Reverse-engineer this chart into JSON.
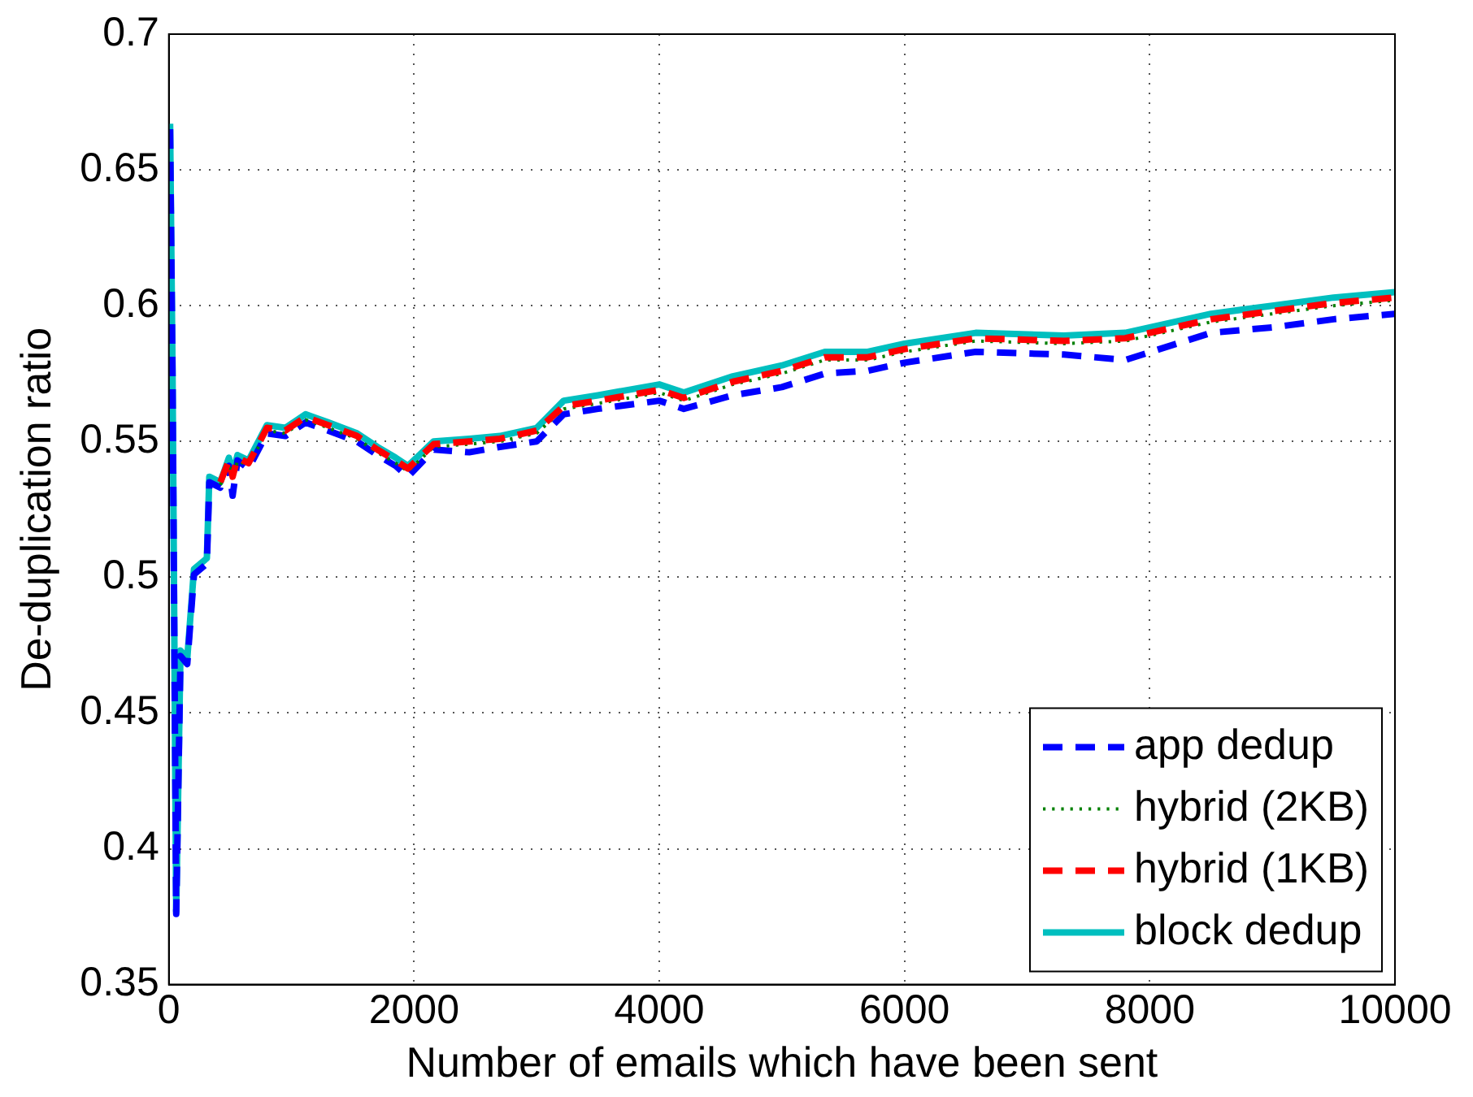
{
  "chart_data": {
    "type": "line",
    "xlabel": "Number of emails which have been sent",
    "ylabel": "De-duplication ratio",
    "x": [
      10,
      30,
      60,
      95,
      150,
      205,
      310,
      330,
      420,
      490,
      520,
      560,
      650,
      800,
      950,
      1115,
      1300,
      1535,
      1700,
      1850,
      1950,
      2160,
      2450,
      2700,
      3000,
      3220,
      3500,
      4000,
      4200,
      4600,
      5000,
      5350,
      5700,
      6000,
      6580,
      7300,
      7800,
      8500,
      9000,
      9500,
      10000
    ],
    "series": [
      {
        "name": "app dedup",
        "color": "#0000ff",
        "line_style": "dashed",
        "values": [
          0.665,
          0.574,
          0.376,
          0.471,
          0.468,
          0.501,
          0.505,
          0.535,
          0.533,
          0.541,
          0.53,
          0.543,
          0.54,
          0.553,
          0.552,
          0.557,
          0.554,
          0.55,
          0.545,
          0.541,
          0.537,
          0.547,
          0.546,
          0.548,
          0.55,
          0.56,
          0.562,
          0.565,
          0.562,
          0.567,
          0.57,
          0.575,
          0.576,
          0.579,
          0.583,
          0.582,
          0.58,
          0.59,
          0.592,
          0.595,
          0.597
        ]
      },
      {
        "name": "hybrid (2KB)",
        "color": "#008000",
        "line_style": "dotted",
        "values": [
          null,
          null,
          null,
          null,
          null,
          null,
          null,
          null,
          0.534,
          0.542,
          0.536,
          0.543,
          0.541,
          0.554,
          0.553,
          0.558,
          0.555,
          0.551,
          0.546,
          0.542,
          0.539,
          0.548,
          0.549,
          0.55,
          0.553,
          0.562,
          0.564,
          0.568,
          0.565,
          0.571,
          0.575,
          0.58,
          0.58,
          0.583,
          0.587,
          0.586,
          0.587,
          0.594,
          0.597,
          0.6,
          0.602
        ]
      },
      {
        "name": "hybrid (1KB)",
        "color": "#ff0000",
        "line_style": "dashed",
        "values": [
          null,
          null,
          null,
          null,
          null,
          null,
          null,
          null,
          0.535,
          0.543,
          0.537,
          0.544,
          0.542,
          0.555,
          0.554,
          0.559,
          0.556,
          0.552,
          0.547,
          0.543,
          0.54,
          0.549,
          0.55,
          0.551,
          0.554,
          0.563,
          0.565,
          0.569,
          0.566,
          0.572,
          0.576,
          0.581,
          0.581,
          0.584,
          0.588,
          0.587,
          0.588,
          0.595,
          0.598,
          0.601,
          0.603
        ]
      },
      {
        "name": "block dedup",
        "color": "#00bfbf",
        "line_style": "solid",
        "values": [
          0.667,
          0.576,
          0.377,
          0.473,
          0.47,
          0.503,
          0.507,
          0.537,
          0.535,
          0.544,
          0.538,
          0.545,
          0.543,
          0.556,
          0.555,
          0.56,
          0.557,
          0.553,
          0.548,
          0.544,
          0.541,
          0.55,
          0.551,
          0.552,
          0.555,
          0.565,
          0.567,
          0.571,
          0.568,
          0.574,
          0.578,
          0.583,
          0.583,
          0.586,
          0.59,
          0.589,
          0.59,
          0.597,
          0.6,
          0.603,
          0.605
        ]
      }
    ],
    "xlim": [
      0,
      10000
    ],
    "xticks": [
      0,
      2000,
      4000,
      6000,
      8000,
      10000
    ],
    "ylim": [
      0.35,
      0.7
    ],
    "yticks": [
      0.35,
      0.4,
      0.45,
      0.5,
      0.55,
      0.6,
      0.65,
      0.7
    ],
    "grid": true,
    "legend": "bottom right",
    "marker": "none"
  }
}
